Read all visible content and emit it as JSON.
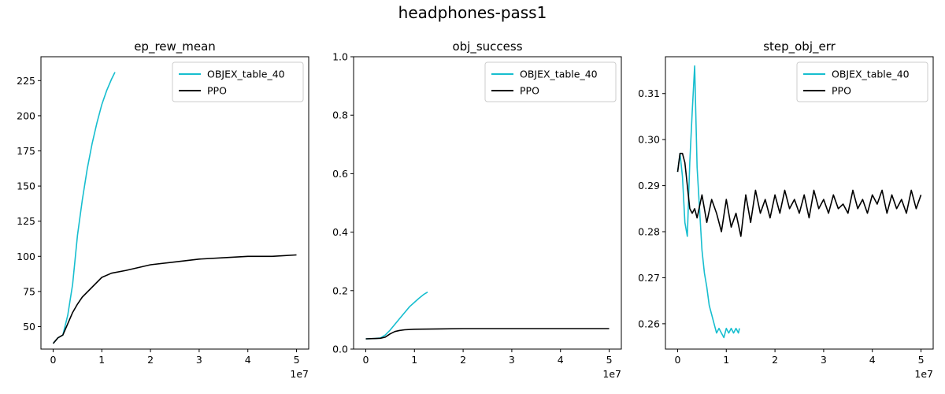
{
  "figure_title": "headphones-pass1",
  "chart_data": [
    {
      "type": "line",
      "title": "ep_rew_mean",
      "xlabel": "",
      "ylabel": "",
      "xlim": [
        -0.25,
        5.25
      ],
      "ylim": [
        34,
        242
      ],
      "x_ticks": [
        0,
        1,
        2,
        3,
        4,
        5
      ],
      "x_tick_labels": [
        "0",
        "1",
        "2",
        "3",
        "4",
        "5"
      ],
      "x_exponent_label": "1e7",
      "y_ticks": [
        50,
        75,
        100,
        125,
        150,
        175,
        200,
        225
      ],
      "y_tick_labels": [
        "50",
        "75",
        "100",
        "125",
        "150",
        "175",
        "200",
        "225"
      ],
      "legend": {
        "placement": "top-right",
        "entries": [
          "OBJEX_table_40",
          "PPO"
        ]
      },
      "series": [
        {
          "name": "OBJEX_table_40",
          "color": "#17becf",
          "x": [
            0,
            0.1,
            0.2,
            0.3,
            0.4,
            0.5,
            0.6,
            0.7,
            0.8,
            0.9,
            1.0,
            1.1,
            1.2,
            1.27
          ],
          "y": [
            38,
            42,
            44,
            58,
            80,
            115,
            140,
            162,
            180,
            195,
            208,
            218,
            226,
            231
          ]
        },
        {
          "name": "PPO",
          "color": "#000000",
          "x": [
            0,
            0.1,
            0.2,
            0.3,
            0.4,
            0.5,
            0.6,
            0.8,
            1.0,
            1.2,
            1.5,
            2.0,
            2.5,
            3.0,
            3.5,
            4.0,
            4.5,
            5.0
          ],
          "y": [
            38,
            42,
            44,
            52,
            60,
            66,
            71,
            78,
            85,
            88,
            90,
            94,
            96,
            98,
            99,
            100,
            100,
            101
          ]
        }
      ]
    },
    {
      "type": "line",
      "title": "obj_success",
      "xlabel": "",
      "ylabel": "",
      "xlim": [
        -0.25,
        5.25
      ],
      "ylim": [
        0.0,
        1.0
      ],
      "x_ticks": [
        0,
        1,
        2,
        3,
        4,
        5
      ],
      "x_tick_labels": [
        "0",
        "1",
        "2",
        "3",
        "4",
        "5"
      ],
      "x_exponent_label": "1e7",
      "y_ticks": [
        0.0,
        0.2,
        0.4,
        0.6,
        0.8,
        1.0
      ],
      "y_tick_labels": [
        "0.0",
        "0.2",
        "0.4",
        "0.6",
        "0.8",
        "1.0"
      ],
      "legend": {
        "placement": "top-right",
        "entries": [
          "OBJEX_table_40",
          "PPO"
        ]
      },
      "series": [
        {
          "name": "OBJEX_table_40",
          "color": "#17becf",
          "x": [
            0,
            0.2,
            0.3,
            0.4,
            0.5,
            0.6,
            0.7,
            0.8,
            0.9,
            1.0,
            1.1,
            1.2,
            1.27
          ],
          "y": [
            0.035,
            0.036,
            0.038,
            0.048,
            0.065,
            0.085,
            0.105,
            0.125,
            0.145,
            0.16,
            0.175,
            0.188,
            0.195
          ]
        },
        {
          "name": "PPO",
          "color": "#000000",
          "x": [
            0,
            0.2,
            0.3,
            0.4,
            0.5,
            0.6,
            0.7,
            0.8,
            1.0,
            1.5,
            2.0,
            3.0,
            4.0,
            5.0
          ],
          "y": [
            0.035,
            0.036,
            0.037,
            0.041,
            0.052,
            0.06,
            0.064,
            0.066,
            0.068,
            0.069,
            0.07,
            0.07,
            0.07,
            0.07
          ]
        }
      ]
    },
    {
      "type": "line",
      "title": "step_obj_err",
      "xlabel": "",
      "ylabel": "",
      "xlim": [
        -0.25,
        5.25
      ],
      "ylim": [
        0.2545,
        0.318
      ],
      "x_ticks": [
        0,
        1,
        2,
        3,
        4,
        5
      ],
      "x_tick_labels": [
        "0",
        "1",
        "2",
        "3",
        "4",
        "5"
      ],
      "x_exponent_label": "1e7",
      "y_ticks": [
        0.26,
        0.27,
        0.28,
        0.29,
        0.3,
        0.31
      ],
      "y_tick_labels": [
        "0.26",
        "0.27",
        "0.28",
        "0.29",
        "0.30",
        "0.31"
      ],
      "legend": {
        "placement": "top-right",
        "entries": [
          "OBJEX_table_40",
          "PPO"
        ]
      },
      "series": [
        {
          "name": "OBJEX_table_40",
          "color": "#17becf",
          "x": [
            0,
            0.05,
            0.1,
            0.15,
            0.2,
            0.25,
            0.3,
            0.35,
            0.4,
            0.45,
            0.5,
            0.55,
            0.6,
            0.65,
            0.7,
            0.75,
            0.8,
            0.85,
            0.9,
            0.95,
            1.0,
            1.05,
            1.1,
            1.15,
            1.2,
            1.25,
            1.27
          ],
          "y": [
            0.293,
            0.297,
            0.292,
            0.282,
            0.279,
            0.295,
            0.306,
            0.316,
            0.294,
            0.285,
            0.276,
            0.271,
            0.268,
            0.264,
            0.262,
            0.26,
            0.258,
            0.259,
            0.258,
            0.257,
            0.259,
            0.258,
            0.259,
            0.258,
            0.259,
            0.258,
            0.259
          ]
        },
        {
          "name": "PPO",
          "color": "#000000",
          "x": [
            0,
            0.05,
            0.1,
            0.15,
            0.2,
            0.25,
            0.3,
            0.35,
            0.4,
            0.5,
            0.6,
            0.7,
            0.8,
            0.9,
            1.0,
            1.1,
            1.2,
            1.3,
            1.4,
            1.5,
            1.6,
            1.7,
            1.8,
            1.9,
            2.0,
            2.1,
            2.2,
            2.3,
            2.4,
            2.5,
            2.6,
            2.7,
            2.8,
            2.9,
            3.0,
            3.1,
            3.2,
            3.3,
            3.4,
            3.5,
            3.6,
            3.7,
            3.8,
            3.9,
            4.0,
            4.1,
            4.2,
            4.3,
            4.4,
            4.5,
            4.6,
            4.7,
            4.8,
            4.9,
            5.0
          ],
          "y": [
            0.293,
            0.297,
            0.297,
            0.295,
            0.29,
            0.285,
            0.284,
            0.285,
            0.283,
            0.288,
            0.282,
            0.287,
            0.284,
            0.28,
            0.287,
            0.281,
            0.284,
            0.279,
            0.288,
            0.282,
            0.289,
            0.284,
            0.287,
            0.283,
            0.288,
            0.284,
            0.289,
            0.285,
            0.287,
            0.284,
            0.288,
            0.283,
            0.289,
            0.285,
            0.287,
            0.284,
            0.288,
            0.285,
            0.286,
            0.284,
            0.289,
            0.285,
            0.287,
            0.284,
            0.288,
            0.286,
            0.289,
            0.284,
            0.288,
            0.285,
            0.287,
            0.284,
            0.289,
            0.285,
            0.288
          ]
        }
      ]
    }
  ]
}
